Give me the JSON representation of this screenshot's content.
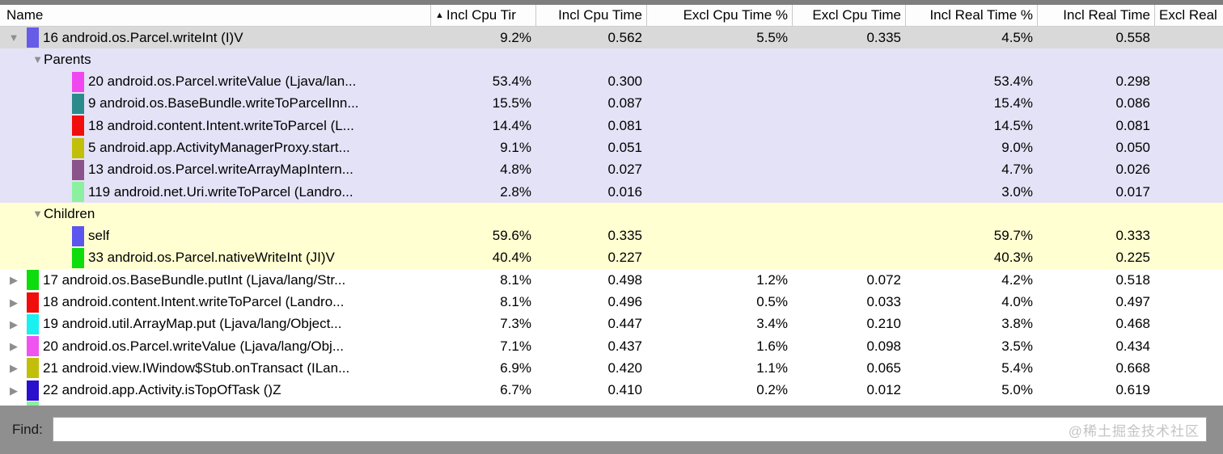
{
  "icons": {
    "sort_ascending": "▲",
    "expand_expanded": "▼",
    "expand_collapsed": "▶"
  },
  "colors": {
    "selected_row_bg": "#d9d9d9",
    "parents_section_bg": "#e4e2f6",
    "children_section_bg": "#ffffd2",
    "find_bar_bg": "#8f8f8f",
    "top_border": "#7e7e7e"
  },
  "table": {
    "columns": [
      {
        "label": "Name"
      },
      {
        "label": "Incl Cpu Tir",
        "sorted": "ascending"
      },
      {
        "label": "Incl Cpu Time"
      },
      {
        "label": "Excl Cpu Time %"
      },
      {
        "label": "Excl Cpu Time"
      },
      {
        "label": "Incl Real Time %"
      },
      {
        "label": "Incl Real Time"
      },
      {
        "label": "Excl Real"
      }
    ],
    "rows": [
      {
        "type": "method",
        "expanded": true,
        "swatch": "#675ce8",
        "bg": "selected",
        "name": "16 android.os.Parcel.writeInt (I)V",
        "values": [
          "9.2%",
          "0.562",
          "5.5%",
          "0.335",
          "4.5%",
          "0.558"
        ]
      },
      {
        "type": "section",
        "bg": "parents",
        "label": "Parents"
      },
      {
        "type": "sub",
        "swatch": "#f046f0",
        "bg": "parents",
        "name": "20 android.os.Parcel.writeValue (Ljava/lan...",
        "values": [
          "53.4%",
          "0.300",
          "",
          "",
          "53.4%",
          "0.298"
        ]
      },
      {
        "type": "sub",
        "swatch": "#2b8b8b",
        "bg": "parents",
        "name": "9 android.os.BaseBundle.writeToParcelInn...",
        "values": [
          "15.5%",
          "0.087",
          "",
          "",
          "15.4%",
          "0.086"
        ]
      },
      {
        "type": "sub",
        "swatch": "#f20d0d",
        "bg": "parents",
        "name": "18 android.content.Intent.writeToParcel (L...",
        "values": [
          "14.4%",
          "0.081",
          "",
          "",
          "14.5%",
          "0.081"
        ]
      },
      {
        "type": "sub",
        "swatch": "#c2bf0b",
        "bg": "parents",
        "name": "5 android.app.ActivityManagerProxy.start...",
        "values": [
          "9.1%",
          "0.051",
          "",
          "",
          "9.0%",
          "0.050"
        ]
      },
      {
        "type": "sub",
        "swatch": "#8a5389",
        "bg": "parents",
        "name": "13 android.os.Parcel.writeArrayMapIntern...",
        "values": [
          "4.8%",
          "0.027",
          "",
          "",
          "4.7%",
          "0.026"
        ]
      },
      {
        "type": "sub",
        "swatch": "#8cf0a0",
        "bg": "parents",
        "name": "119 android.net.Uri.writeToParcel (Landro...",
        "values": [
          "2.8%",
          "0.016",
          "",
          "",
          "3.0%",
          "0.017"
        ]
      },
      {
        "type": "section",
        "bg": "children",
        "label": "Children"
      },
      {
        "type": "sub",
        "swatch": "#5c55ee",
        "bg": "children",
        "name": "self",
        "values": [
          "59.6%",
          "0.335",
          "",
          "",
          "59.7%",
          "0.333"
        ]
      },
      {
        "type": "sub",
        "swatch": "#0ddd0d",
        "bg": "children",
        "name": "33 android.os.Parcel.nativeWriteInt (JI)V",
        "values": [
          "40.4%",
          "0.227",
          "",
          "",
          "40.3%",
          "0.225"
        ]
      },
      {
        "type": "method",
        "expanded": false,
        "swatch": "#0ddd0d",
        "bg": "white",
        "name": "17 android.os.BaseBundle.putInt (Ljava/lang/Str...",
        "values": [
          "8.1%",
          "0.498",
          "1.2%",
          "0.072",
          "4.2%",
          "0.518"
        ]
      },
      {
        "type": "method",
        "expanded": false,
        "swatch": "#f20d0d",
        "bg": "white",
        "name": "18 android.content.Intent.writeToParcel (Landro...",
        "values": [
          "8.1%",
          "0.496",
          "0.5%",
          "0.033",
          "4.0%",
          "0.497"
        ]
      },
      {
        "type": "method",
        "expanded": false,
        "swatch": "#19f0f0",
        "bg": "white",
        "name": "19 android.util.ArrayMap.put (Ljava/lang/Object...",
        "values": [
          "7.3%",
          "0.447",
          "3.4%",
          "0.210",
          "3.8%",
          "0.468"
        ]
      },
      {
        "type": "method",
        "expanded": false,
        "swatch": "#f053f0",
        "bg": "white",
        "name": "20 android.os.Parcel.writeValue (Ljava/lang/Obj...",
        "values": [
          "7.1%",
          "0.437",
          "1.6%",
          "0.098",
          "3.5%",
          "0.434"
        ]
      },
      {
        "type": "method",
        "expanded": false,
        "swatch": "#c2bf0b",
        "bg": "white",
        "name": "21 android.view.IWindow$Stub.onTransact (ILan...",
        "values": [
          "6.9%",
          "0.420",
          "1.1%",
          "0.065",
          "5.4%",
          "0.668"
        ]
      },
      {
        "type": "method",
        "expanded": false,
        "swatch": "#2a10cc",
        "bg": "white",
        "name": "22 android.app.Activity.isTopOfTask ()Z",
        "values": [
          "6.7%",
          "0.410",
          "0.2%",
          "0.012",
          "5.0%",
          "0.619"
        ]
      }
    ],
    "partial_row_swatch": "#8cf0a0"
  },
  "find": {
    "label": "Find:",
    "value": "",
    "watermark": "@稀土掘金技术社区"
  }
}
